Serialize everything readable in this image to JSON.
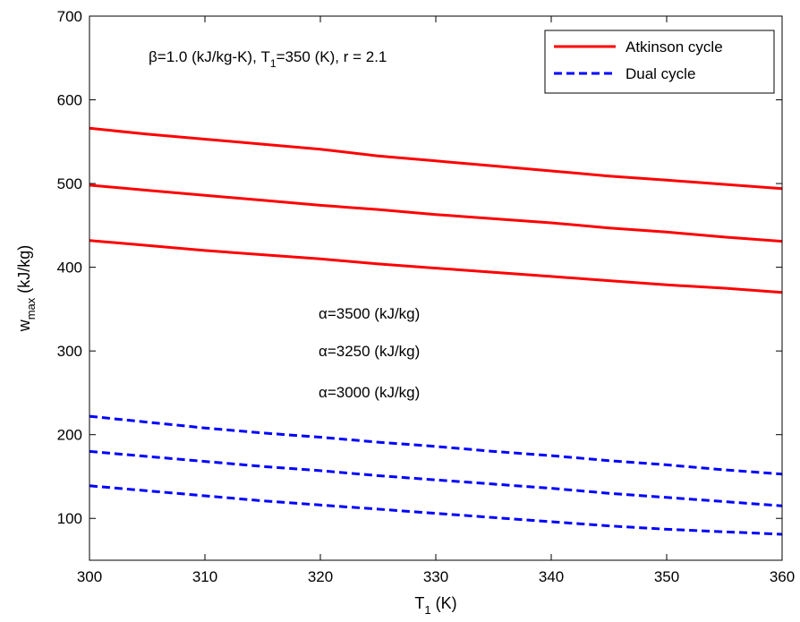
{
  "chart_data": {
    "type": "line",
    "xlabel_main": "T",
    "xlabel_sub": "1",
    "xlabel_tail": " (K)",
    "ylabel_main": "w",
    "ylabel_sub": "max",
    "ylabel_tail": " (kJ/kg)",
    "xlim": [
      300,
      360
    ],
    "ylim": [
      50,
      700
    ],
    "xticks": [
      300,
      310,
      320,
      330,
      340,
      350,
      360
    ],
    "yticks": [
      100,
      200,
      300,
      400,
      500,
      600,
      700
    ],
    "grid": false,
    "legend_position": "top-right",
    "legend": [
      {
        "label": "Atkinson cycle",
        "color": "#ff0000",
        "dash": "solid"
      },
      {
        "label": "Dual cycle",
        "color": "#0000ff",
        "dash": "dashed"
      }
    ],
    "annotations": {
      "params": {
        "beta": "β",
        "part1": "=1.0 (kJ/kg-K), T",
        "sub": "1",
        "part2": "=350 (K), r = 2.1"
      },
      "alphas": [
        {
          "symbol": "α",
          "text": "=3500 (kJ/kg)"
        },
        {
          "symbol": "α",
          "text": "=3250 (kJ/kg)"
        },
        {
          "symbol": "α",
          "text": "=3000 (kJ/kg)"
        }
      ]
    },
    "x": [
      300,
      305,
      310,
      315,
      320,
      325,
      330,
      335,
      340,
      345,
      350,
      355,
      360
    ],
    "series": [
      {
        "group": "atkinson",
        "color": "#ff0000",
        "dash": "solid",
        "values": [
          566,
          559,
          553,
          547,
          541,
          533,
          527,
          521,
          515,
          509,
          504,
          499,
          494
        ]
      },
      {
        "group": "atkinson",
        "color": "#ff0000",
        "dash": "solid",
        "values": [
          498,
          492,
          486,
          480,
          474,
          469,
          463,
          458,
          453,
          447,
          442,
          436,
          431
        ]
      },
      {
        "group": "atkinson",
        "color": "#ff0000",
        "dash": "solid",
        "values": [
          432,
          426,
          420,
          415,
          410,
          404,
          399,
          394,
          389,
          384,
          379,
          375,
          370
        ]
      },
      {
        "group": "dual",
        "color": "#0000ff",
        "dash": "dashed",
        "values": [
          222,
          215,
          208,
          202,
          197,
          191,
          186,
          180,
          175,
          169,
          164,
          158,
          153
        ]
      },
      {
        "group": "dual",
        "color": "#0000ff",
        "dash": "dashed",
        "values": [
          180,
          174,
          168,
          162,
          157,
          151,
          146,
          141,
          136,
          130,
          125,
          120,
          115
        ]
      },
      {
        "group": "dual",
        "color": "#0000ff",
        "dash": "dashed",
        "values": [
          139,
          133,
          127,
          121,
          116,
          111,
          106,
          101,
          96,
          91,
          87,
          84,
          81
        ]
      }
    ]
  }
}
